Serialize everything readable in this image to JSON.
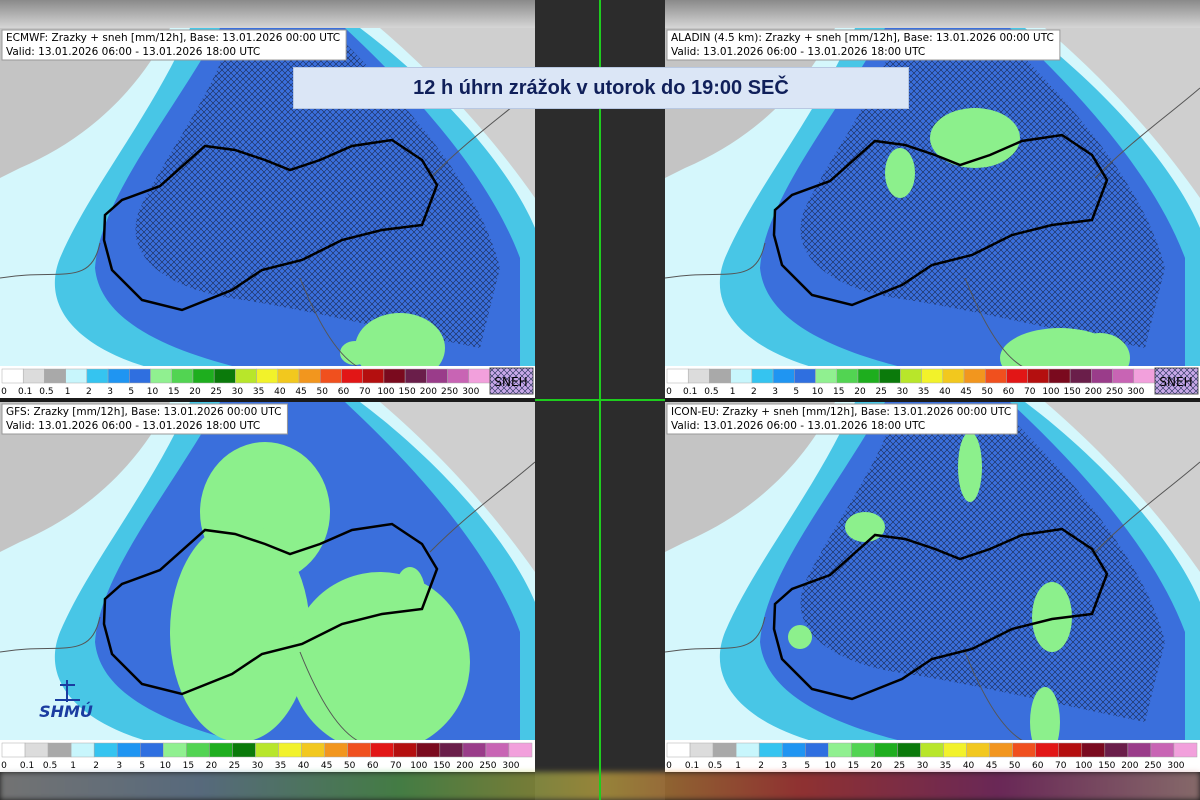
{
  "title": "12 h úhrn zrážok v utorok do 19:00 SEČ",
  "panels": [
    {
      "model_line": "ECMWF: Zrazky + sneh [mm/12h], Base: 13.01.2026 00:00 UTC",
      "valid_line": "Valid: 13.01.2026 06:00 - 13.01.2026 18:00 UTC",
      "snow_label": "SNEH"
    },
    {
      "model_line": "ALADIN (4.5 km): Zrazky + sneh [mm/12h], Base: 13.01.2026 00:00 UTC",
      "valid_line": "Valid: 13.01.2026 06:00 - 13.01.2026 18:00 UTC",
      "snow_label": "SNEH"
    },
    {
      "model_line": "GFS: Zrazky [mm/12h], Base: 13.01.2026 00:00 UTC",
      "valid_line": "Valid: 13.01.2026 06:00 - 13.01.2026 18:00 UTC"
    },
    {
      "model_line": "ICON-EU: Zrazky + sneh [mm/12h], Base: 13.01.2026 00:00 UTC",
      "valid_line": "Valid: 13.01.2026 06:00 - 13.01.2026 18:00 UTC"
    }
  ],
  "legend": {
    "labels": [
      "0",
      "0.1",
      "0.5",
      "1",
      "2",
      "3",
      "5",
      "10",
      "15",
      "20",
      "25",
      "30",
      "35",
      "40",
      "45",
      "50",
      "60",
      "70",
      "100",
      "150",
      "200",
      "250",
      "300"
    ],
    "colors": [
      "#ffffff",
      "#dcdcdc",
      "#a9a9a9",
      "#c8f6fc",
      "#35c4f0",
      "#1f95f2",
      "#2f6fe0",
      "#90f090",
      "#52d452",
      "#1eae1e",
      "#0b7a0b",
      "#b8e62a",
      "#f2f22a",
      "#f2c81e",
      "#f2961e",
      "#f0501e",
      "#e21616",
      "#b40f0f",
      "#7a0a1e",
      "#6a1e4a",
      "#9a3c8a",
      "#c864b4",
      "#f2a0dc"
    ]
  },
  "logo": "SHMÚ"
}
